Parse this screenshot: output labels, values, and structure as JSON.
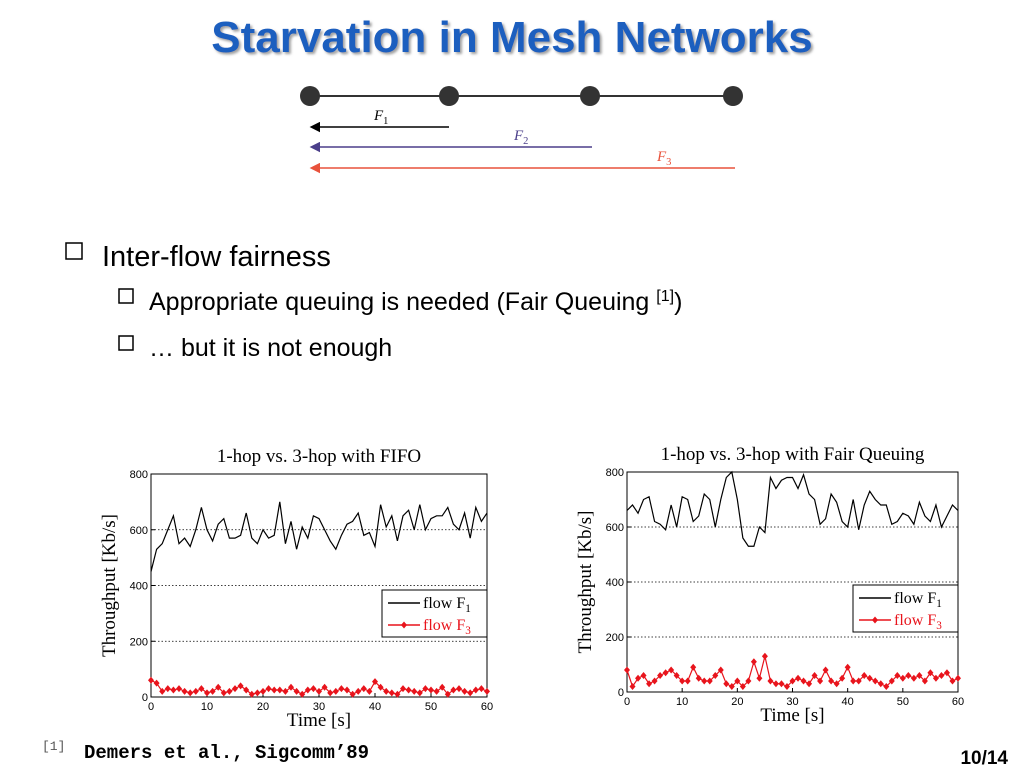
{
  "title": "Starvation in Mesh Networks",
  "diagram": {
    "flows": [
      {
        "label": "F1",
        "color": "#000000"
      },
      {
        "label": "F2",
        "color": "#4b3f8a"
      },
      {
        "label": "F3",
        "color": "#e8523b"
      }
    ]
  },
  "bullets": [
    {
      "text": "Inter-flow fairness",
      "level": 1
    },
    {
      "text": "Appropriate queuing is needed (Fair Queuing ",
      "ref": "[1]",
      "after": ")",
      "level": 2
    },
    {
      "text": "… but it is not enough",
      "level": 2
    }
  ],
  "chart_data": [
    {
      "type": "line",
      "title": "1-hop vs. 3-hop with FIFO",
      "xlabel": "Time [s]",
      "ylabel": "Throughput [Kb/s]",
      "x": [
        0,
        1,
        2,
        3,
        4,
        5,
        6,
        7,
        8,
        9,
        10,
        11,
        12,
        13,
        14,
        15,
        16,
        17,
        18,
        19,
        20,
        21,
        22,
        23,
        24,
        25,
        26,
        27,
        28,
        29,
        30,
        31,
        32,
        33,
        34,
        35,
        36,
        37,
        38,
        39,
        40,
        41,
        42,
        43,
        44,
        45,
        46,
        47,
        48,
        49,
        50,
        51,
        52,
        53,
        54,
        55,
        56,
        57,
        58,
        59,
        60
      ],
      "xlim": [
        0,
        60
      ],
      "xticks": [
        0,
        10,
        20,
        30,
        40,
        50,
        60
      ],
      "ylim": [
        0,
        800
      ],
      "yticks": [
        0,
        200,
        400,
        600,
        800
      ],
      "grid": true,
      "legend": "lower right",
      "series": [
        {
          "name": "flow F1",
          "color": "#000000",
          "values": [
            450,
            530,
            550,
            600,
            650,
            550,
            570,
            540,
            600,
            680,
            600,
            560,
            620,
            640,
            570,
            570,
            580,
            660,
            570,
            550,
            600,
            570,
            580,
            700,
            550,
            630,
            530,
            610,
            570,
            650,
            640,
            600,
            560,
            530,
            580,
            620,
            630,
            660,
            580,
            590,
            540,
            690,
            610,
            650,
            560,
            650,
            670,
            600,
            690,
            600,
            640,
            650,
            650,
            680,
            620,
            600,
            660,
            570,
            680,
            630,
            660
          ]
        },
        {
          "name": "flow F3",
          "color": "#e8141c",
          "marker": "diamond",
          "values": [
            60,
            50,
            20,
            30,
            25,
            30,
            20,
            15,
            20,
            30,
            15,
            20,
            35,
            15,
            20,
            30,
            40,
            25,
            10,
            15,
            20,
            30,
            25,
            25,
            20,
            35,
            20,
            10,
            25,
            30,
            20,
            35,
            15,
            20,
            30,
            25,
            10,
            20,
            30,
            20,
            55,
            35,
            20,
            15,
            10,
            30,
            25,
            20,
            15,
            30,
            25,
            20,
            35,
            10,
            25,
            30,
            20,
            15,
            25,
            30,
            20
          ]
        }
      ]
    },
    {
      "type": "line",
      "title": "1-hop vs. 3-hop with Fair Queuing",
      "xlabel": "Time [s]",
      "ylabel": "Throughput [Kb/s]",
      "x": [
        0,
        1,
        2,
        3,
        4,
        5,
        6,
        7,
        8,
        9,
        10,
        11,
        12,
        13,
        14,
        15,
        16,
        17,
        18,
        19,
        20,
        21,
        22,
        23,
        24,
        25,
        26,
        27,
        28,
        29,
        30,
        31,
        32,
        33,
        34,
        35,
        36,
        37,
        38,
        39,
        40,
        41,
        42,
        43,
        44,
        45,
        46,
        47,
        48,
        49,
        50,
        51,
        52,
        53,
        54,
        55,
        56,
        57,
        58,
        59,
        60
      ],
      "xlim": [
        0,
        60
      ],
      "xticks": [
        0,
        10,
        20,
        30,
        40,
        50,
        60
      ],
      "ylim": [
        0,
        800
      ],
      "yticks": [
        0,
        200,
        400,
        600,
        800
      ],
      "grid": true,
      "legend": "lower right",
      "series": [
        {
          "name": "flow F1",
          "color": "#000000",
          "values": [
            660,
            680,
            650,
            700,
            710,
            620,
            610,
            590,
            680,
            600,
            710,
            700,
            620,
            640,
            720,
            700,
            600,
            700,
            780,
            800,
            700,
            560,
            530,
            530,
            600,
            580,
            780,
            740,
            770,
            780,
            780,
            740,
            790,
            720,
            700,
            610,
            630,
            720,
            690,
            620,
            600,
            700,
            590,
            680,
            730,
            700,
            680,
            680,
            610,
            620,
            650,
            640,
            610,
            690,
            640,
            620,
            680,
            600,
            640,
            680,
            660
          ]
        },
        {
          "name": "flow F3",
          "color": "#e8141c",
          "marker": "diamond",
          "values": [
            80,
            20,
            50,
            60,
            30,
            40,
            60,
            70,
            80,
            60,
            40,
            40,
            90,
            50,
            40,
            40,
            60,
            80,
            30,
            20,
            40,
            20,
            40,
            110,
            50,
            130,
            40,
            30,
            30,
            20,
            40,
            50,
            40,
            30,
            60,
            40,
            80,
            40,
            30,
            50,
            90,
            40,
            40,
            60,
            50,
            40,
            30,
            20,
            40,
            60,
            50,
            60,
            50,
            60,
            40,
            70,
            50,
            60,
            70,
            40,
            50
          ]
        }
      ]
    }
  ],
  "footnote": {
    "ref": "[1]",
    "text": "Demers et al., Sigcomm’89"
  },
  "page_number": "10/14"
}
